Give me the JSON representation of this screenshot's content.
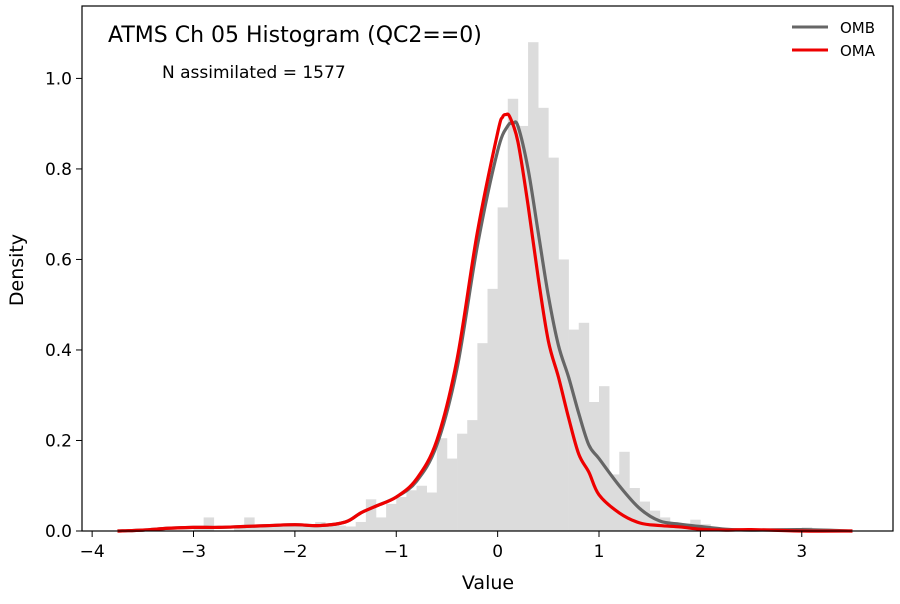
{
  "chart_data": {
    "type": "histogram",
    "title": "ATMS Ch 05 Histogram (QC2==0)",
    "annotation": "N assimilated = 1577",
    "xlabel": "Value",
    "ylabel": "Density",
    "xlim": [
      -4.1,
      3.9
    ],
    "ylim": [
      0,
      1.16
    ],
    "xticks": [
      -4,
      -3,
      -2,
      -1,
      0,
      1,
      2,
      3
    ],
    "xtick_labels": [
      "−4",
      "−3",
      "−2",
      "−1",
      "0",
      "1",
      "2",
      "3"
    ],
    "yticks": [
      0.0,
      0.2,
      0.4,
      0.6,
      0.8,
      1.0
    ],
    "ytick_labels": [
      "0.0",
      "0.2",
      "0.4",
      "0.6",
      "0.8",
      "1.0"
    ],
    "legend_position": "top-right",
    "histogram": {
      "color": "#dcdcdc",
      "bin_width": 0.1,
      "bins": [
        [
          -3.0,
          0.006
        ],
        [
          -2.9,
          0.03
        ],
        [
          -2.6,
          0.006
        ],
        [
          -2.5,
          0.03
        ],
        [
          -2.4,
          0.012
        ],
        [
          -2.3,
          0.012
        ],
        [
          -2.2,
          0.012
        ],
        [
          -2.1,
          0.015
        ],
        [
          -2.0,
          0.015
        ],
        [
          -1.9,
          0.012
        ],
        [
          -1.8,
          0.02
        ],
        [
          -1.7,
          0.015
        ],
        [
          -1.6,
          0.012
        ],
        [
          -1.5,
          0.01
        ],
        [
          -1.4,
          0.02
        ],
        [
          -1.3,
          0.07
        ],
        [
          -1.2,
          0.03
        ],
        [
          -1.1,
          0.06
        ],
        [
          -1.0,
          0.075
        ],
        [
          -0.9,
          0.09
        ],
        [
          -0.8,
          0.1
        ],
        [
          -0.7,
          0.085
        ],
        [
          -0.6,
          0.205
        ],
        [
          -0.5,
          0.16
        ],
        [
          -0.4,
          0.215
        ],
        [
          -0.3,
          0.245
        ],
        [
          -0.2,
          0.415
        ],
        [
          -0.1,
          0.535
        ],
        [
          0.0,
          0.715
        ],
        [
          0.1,
          0.955
        ],
        [
          0.2,
          0.895
        ],
        [
          0.3,
          1.08
        ],
        [
          0.4,
          0.935
        ],
        [
          0.5,
          0.825
        ],
        [
          0.6,
          0.6
        ],
        [
          0.7,
          0.445
        ],
        [
          0.8,
          0.46
        ],
        [
          0.9,
          0.285
        ],
        [
          1.0,
          0.32
        ],
        [
          1.1,
          0.125
        ],
        [
          1.2,
          0.175
        ],
        [
          1.3,
          0.095
        ],
        [
          1.4,
          0.065
        ],
        [
          1.5,
          0.045
        ],
        [
          1.6,
          0.03
        ],
        [
          1.7,
          0.015
        ],
        [
          1.8,
          0.008
        ],
        [
          1.9,
          0.025
        ],
        [
          2.0,
          0.015
        ],
        [
          2.1,
          0.006
        ],
        [
          2.2,
          0.005
        ],
        [
          2.3,
          0.004
        ],
        [
          2.4,
          0.003
        ],
        [
          2.5,
          0.003
        ],
        [
          2.6,
          0.003
        ],
        [
          2.7,
          0.003
        ],
        [
          2.8,
          0.004
        ],
        [
          2.9,
          0.003
        ],
        [
          3.0,
          0.008
        ],
        [
          3.1,
          0.003
        ]
      ]
    },
    "series": [
      {
        "name": "OMB",
        "color": "#666666",
        "x": [
          -3.75,
          -3.5,
          -3.25,
          -3.0,
          -2.75,
          -2.5,
          -2.25,
          -2.0,
          -1.75,
          -1.5,
          -1.35,
          -1.2,
          -1.0,
          -0.8,
          -0.6,
          -0.4,
          -0.2,
          0.0,
          0.1,
          0.15,
          0.2,
          0.3,
          0.4,
          0.5,
          0.6,
          0.7,
          0.8,
          0.9,
          1.0,
          1.2,
          1.4,
          1.6,
          1.8,
          2.0,
          2.25,
          2.5,
          3.0,
          3.5
        ],
        "y": [
          0.0,
          0.002,
          0.006,
          0.008,
          0.008,
          0.01,
          0.012,
          0.014,
          0.012,
          0.02,
          0.04,
          0.055,
          0.075,
          0.11,
          0.19,
          0.36,
          0.63,
          0.84,
          0.895,
          0.9,
          0.895,
          0.8,
          0.66,
          0.52,
          0.41,
          0.34,
          0.26,
          0.19,
          0.16,
          0.1,
          0.05,
          0.022,
          0.015,
          0.01,
          0.004,
          0.002,
          0.003,
          0.0
        ]
      },
      {
        "name": "OMA",
        "color": "#ee0000",
        "x": [
          -3.75,
          -3.5,
          -3.25,
          -3.0,
          -2.75,
          -2.5,
          -2.25,
          -2.0,
          -1.75,
          -1.5,
          -1.35,
          -1.2,
          -1.0,
          -0.8,
          -0.6,
          -0.4,
          -0.2,
          0.0,
          0.05,
          0.08,
          0.12,
          0.2,
          0.3,
          0.4,
          0.5,
          0.6,
          0.7,
          0.8,
          0.9,
          1.0,
          1.2,
          1.4,
          1.6,
          1.8,
          2.0,
          2.25,
          2.5,
          3.0,
          3.5
        ],
        "y": [
          0.0,
          0.002,
          0.006,
          0.008,
          0.008,
          0.01,
          0.012,
          0.014,
          0.012,
          0.02,
          0.04,
          0.055,
          0.075,
          0.115,
          0.2,
          0.38,
          0.66,
          0.88,
          0.915,
          0.92,
          0.915,
          0.86,
          0.72,
          0.56,
          0.42,
          0.34,
          0.25,
          0.17,
          0.13,
          0.08,
          0.04,
          0.018,
          0.012,
          0.009,
          0.004,
          0.002,
          0.003,
          0.0,
          0.0
        ]
      }
    ]
  }
}
